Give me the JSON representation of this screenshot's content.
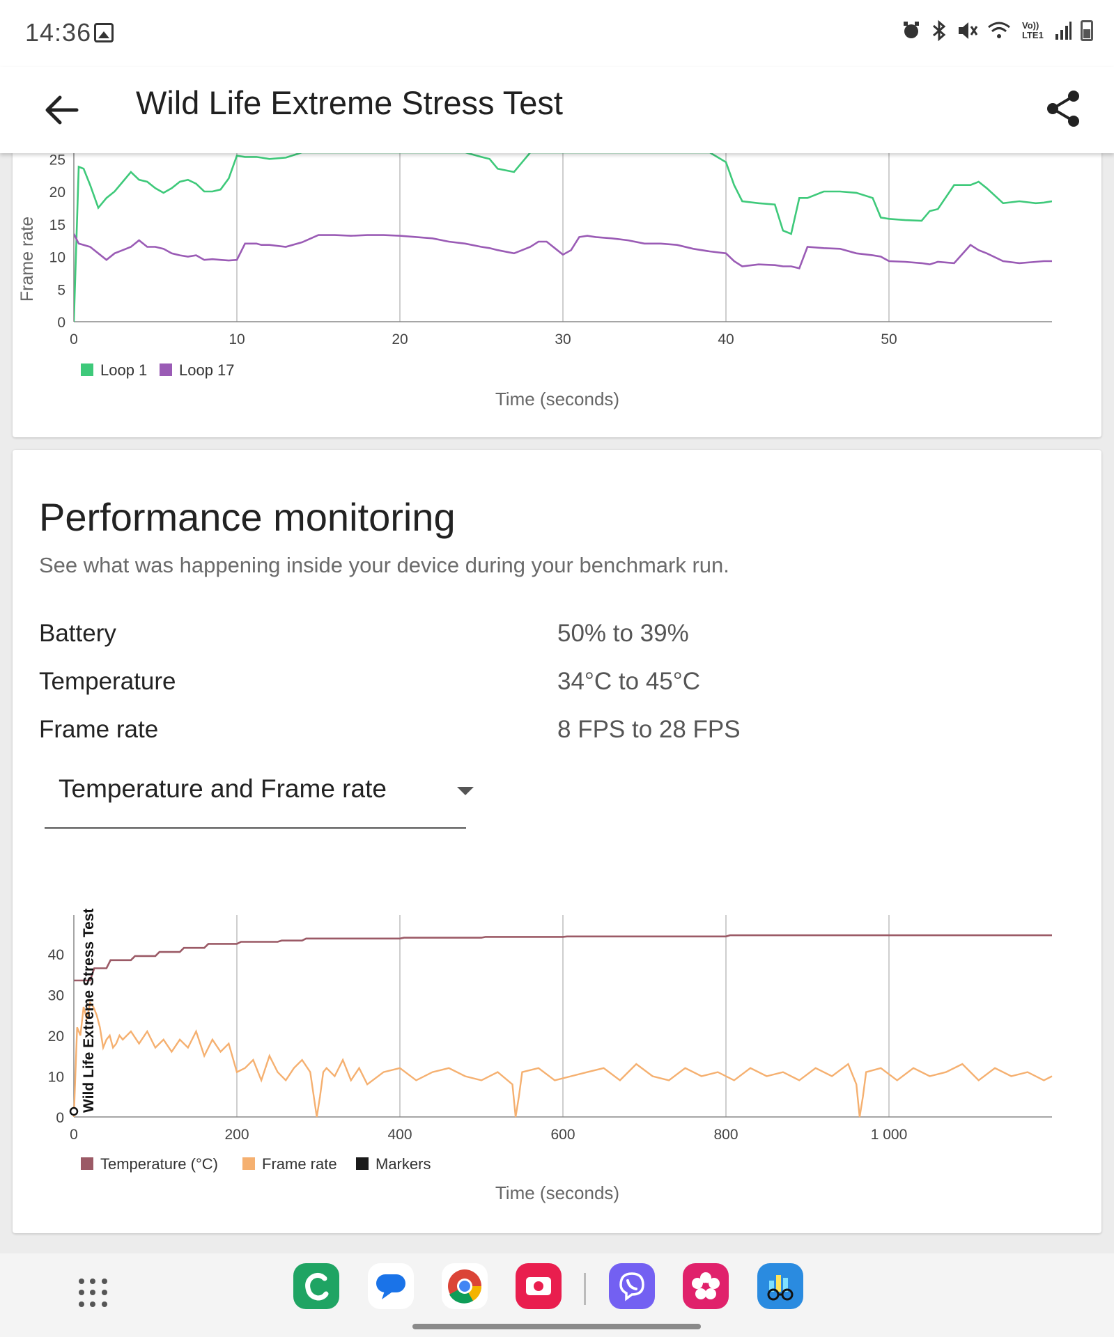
{
  "status_bar": {
    "time": "14:36",
    "icons": [
      "alarm-icon",
      "bluetooth-icon",
      "mute-icon",
      "wifi-6-icon",
      "volte-lte-icon",
      "signal-icon",
      "battery-icon"
    ],
    "volte_label": "Vo)) LTE1"
  },
  "app_bar": {
    "title": "Wild Life Extreme Stress Test",
    "back_icon": "back-arrow-icon",
    "share_icon": "share-icon"
  },
  "colors": {
    "loop1": "#3ec97a",
    "loop17": "#9a5bb5",
    "temperature": "#9b5a66",
    "frame_rate": "#f5b070",
    "markers": "#1a1a1a",
    "grid": "#bdbdbd"
  },
  "performance": {
    "title": "Performance monitoring",
    "subtitle": "See what was happening inside your device during your benchmark run.",
    "stats": [
      {
        "label": "Battery",
        "value": "50% to 39%"
      },
      {
        "label": "Temperature",
        "value": "34°C to 45°C"
      },
      {
        "label": "Frame rate",
        "value": "8 FPS to 28 FPS"
      }
    ],
    "dropdown_value": "Temperature and Frame rate"
  },
  "chart_data": [
    {
      "type": "line",
      "ylabel": "Frame rate",
      "xlabel": "Time (seconds)",
      "xlim": [
        0,
        60
      ],
      "ylim_visible": [
        0,
        26
      ],
      "x_ticks": [
        "0",
        "10",
        "20",
        "30",
        "40",
        "50"
      ],
      "y_ticks": [
        "0",
        "5",
        "10",
        "15",
        "20",
        "25"
      ],
      "legend_position": "bottom-left",
      "series": [
        {
          "name": "Loop 1",
          "x": [
            0,
            0.3,
            0.6,
            1,
            1.5,
            2,
            2.5,
            3,
            3.5,
            4,
            4.5,
            5,
            5.5,
            6,
            6.5,
            7,
            7.5,
            8,
            8.5,
            9,
            9.5,
            10,
            10.5,
            11,
            11.2,
            11.5,
            12,
            13,
            14,
            15,
            15.5,
            16,
            17,
            18,
            19,
            20,
            21,
            22,
            23,
            24,
            25,
            25.5,
            26,
            27,
            27.5,
            28,
            28.5,
            29,
            29.5,
            30,
            30.5,
            31,
            31.5,
            32,
            33,
            34,
            35,
            36,
            37,
            38,
            39,
            40,
            40.5,
            41,
            42,
            43,
            43.5,
            44,
            44.5,
            45,
            46,
            47,
            48,
            49,
            49.5,
            50,
            51,
            52,
            52.5,
            53,
            54,
            55,
            55.5,
            56,
            57,
            58,
            59,
            59.5,
            60
          ],
          "y": [
            0,
            23.8,
            23.5,
            21,
            17.5,
            19,
            20,
            21.5,
            23,
            21.8,
            21.5,
            20.5,
            19.8,
            20.5,
            21.5,
            21.8,
            21.2,
            20,
            20,
            20.3,
            22,
            25.5,
            25.3,
            25.3,
            25.3,
            25.2,
            25,
            25.2,
            26,
            26,
            26,
            26,
            26,
            26,
            26,
            26,
            26,
            26,
            26,
            26,
            25.3,
            25,
            23.5,
            23,
            24.5,
            26,
            26,
            26,
            26,
            26,
            26,
            26,
            26,
            26,
            26,
            26,
            26,
            26,
            26,
            26,
            26,
            24.5,
            21,
            18.5,
            18.2,
            18,
            14,
            13.5,
            19,
            19,
            20,
            20,
            19.8,
            19,
            16,
            15.8,
            15.6,
            15.5,
            17,
            17.3,
            21,
            21,
            21.5,
            20.5,
            18.2,
            18.5,
            18.2,
            18.3,
            18.5
          ],
          "partially_clipped_above": true
        },
        {
          "name": "Loop 17",
          "x": [
            0,
            0.3,
            0.6,
            1,
            1.5,
            2,
            2.5,
            3,
            3.5,
            4,
            4.5,
            5,
            5.5,
            6,
            6.5,
            7,
            7.5,
            8,
            8.5,
            9,
            9.5,
            10,
            10.5,
            11,
            11.2,
            11.5,
            12,
            13,
            14,
            15,
            15.5,
            16,
            17,
            18,
            19,
            20,
            21,
            22,
            23,
            24,
            25,
            25.5,
            26,
            27,
            27.5,
            28,
            28.5,
            29,
            29.5,
            30,
            30.5,
            31,
            31.5,
            32,
            33,
            34,
            35,
            36,
            37,
            38,
            39,
            40,
            40.5,
            41,
            42,
            43,
            43.5,
            44,
            44.5,
            45,
            46,
            47,
            48,
            49,
            49.5,
            50,
            51,
            52,
            52.5,
            53,
            54,
            55,
            55.5,
            56,
            57,
            58,
            59,
            59.5,
            60
          ],
          "y": [
            13.5,
            12,
            11.8,
            11.5,
            10.5,
            9.5,
            10.5,
            11,
            11.5,
            12.5,
            11.5,
            11.5,
            11.2,
            10.5,
            10.2,
            10,
            10.2,
            9.5,
            9.6,
            9.5,
            9.4,
            9.5,
            12,
            12,
            12,
            11.8,
            11.8,
            11.5,
            12.2,
            13.3,
            13.3,
            13.3,
            13.2,
            13.3,
            13.3,
            13.2,
            13,
            12.8,
            12.3,
            12,
            11.5,
            11.3,
            11,
            10.5,
            11,
            11.5,
            12.3,
            12.3,
            11.3,
            10.3,
            11,
            13,
            13.2,
            13,
            12.8,
            12.5,
            12,
            12,
            11.8,
            11.2,
            10.8,
            10.5,
            9.3,
            8.5,
            8.8,
            8.7,
            8.5,
            8.5,
            8.2,
            11.5,
            11.3,
            11.2,
            10.5,
            10.2,
            10,
            9.3,
            9.2,
            9.0,
            8.8,
            9.2,
            9.0,
            11.8,
            11,
            10.5,
            9.3,
            9.0,
            9.2,
            9.3,
            9.3
          ],
          "partially_clipped_above": false
        }
      ]
    },
    {
      "type": "line",
      "xlabel": "Time (seconds)",
      "xlim": [
        0,
        1200
      ],
      "ylim": [
        0,
        45
      ],
      "x_ticks": [
        "0",
        "200",
        "400",
        "600",
        "800",
        "1 000"
      ],
      "y_ticks": [
        "0",
        "10",
        "20",
        "30",
        "40"
      ],
      "legend_position": "bottom-left",
      "marker_label": "Wild Life Extreme Stress Test",
      "marker_x": 0,
      "series": [
        {
          "name": "Temperature (°C)",
          "x": [
            0,
            10,
            20,
            25,
            40,
            45,
            70,
            75,
            100,
            105,
            130,
            135,
            160,
            165,
            200,
            205,
            250,
            255,
            280,
            285,
            400,
            405,
            500,
            505,
            600,
            605,
            800,
            805,
            1200
          ],
          "y": [
            33.5,
            33.5,
            33.5,
            36.5,
            36.5,
            38.5,
            38.5,
            39.5,
            39.5,
            40.5,
            40.5,
            41.5,
            41.5,
            42.5,
            42.5,
            43,
            43,
            43.3,
            43.3,
            43.8,
            43.8,
            44,
            44,
            44.2,
            44.2,
            44.3,
            44.3,
            44.6,
            44.6
          ]
        },
        {
          "name": "Frame rate",
          "x": [
            0,
            4,
            8,
            12,
            16,
            20,
            24,
            28,
            32,
            36,
            40,
            44,
            48,
            52,
            56,
            60,
            70,
            80,
            90,
            100,
            110,
            120,
            130,
            140,
            150,
            160,
            170,
            180,
            190,
            200,
            210,
            220,
            230,
            240,
            250,
            260,
            270,
            280,
            290,
            298,
            302,
            306,
            310,
            320,
            330,
            340,
            350,
            360,
            380,
            400,
            420,
            440,
            460,
            480,
            500,
            520,
            538,
            542,
            546,
            550,
            570,
            590,
            610,
            630,
            650,
            670,
            690,
            710,
            730,
            750,
            770,
            790,
            810,
            830,
            850,
            870,
            890,
            910,
            930,
            950,
            960,
            964,
            968,
            972,
            990,
            1010,
            1030,
            1050,
            1070,
            1090,
            1110,
            1130,
            1150,
            1170,
            1190,
            1200
          ],
          "y": [
            0,
            22,
            20,
            27,
            24,
            28,
            27,
            25,
            22,
            17,
            19,
            20,
            17,
            18,
            20,
            19,
            21,
            18,
            21,
            17,
            19,
            16,
            19,
            17,
            21,
            15,
            19,
            16,
            18,
            11,
            12,
            14,
            9,
            15,
            11,
            9,
            12,
            14,
            11,
            0,
            5,
            11,
            12,
            10,
            14,
            9,
            12,
            8,
            11,
            12,
            9,
            11,
            12,
            10,
            9,
            11,
            8,
            0,
            5,
            11,
            12,
            9,
            10,
            11,
            12,
            9,
            13,
            10,
            9,
            12,
            10,
            11,
            9,
            12,
            10,
            11,
            9,
            12,
            10,
            13,
            8,
            0,
            5,
            11,
            12,
            9,
            12,
            10,
            11,
            13,
            9,
            12,
            10,
            11,
            9,
            10
          ]
        },
        {
          "name": "Markers"
        }
      ]
    }
  ]
}
